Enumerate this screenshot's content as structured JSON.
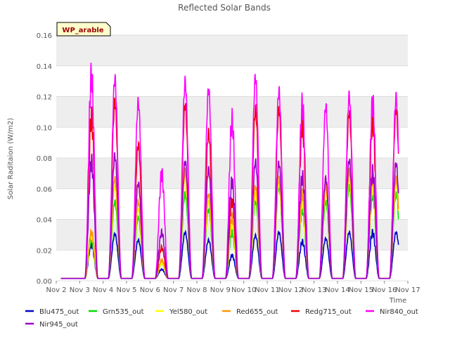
{
  "chart_data": {
    "type": "line",
    "title": "Reflected Solar Bands",
    "xlabel": "Time",
    "ylabel": "Solar Raditaion (W/m2)",
    "badge": "WP_arable",
    "ylim": [
      0,
      0.16
    ],
    "yticks": [
      "0.00",
      "0.02",
      "0.04",
      "0.06",
      "0.08",
      "0.10",
      "0.12",
      "0.14",
      "0.16"
    ],
    "xlim": [
      "Nov 2",
      "Nov 17"
    ],
    "xticks": [
      "Nov 2",
      "Nov 3",
      "Nov 4",
      "Nov 5",
      "Nov 6",
      "Nov 7",
      "Nov 8",
      "Nov 9",
      "Nov 10",
      "Nov 11",
      "Nov 12",
      "Nov 13",
      "Nov 14",
      "Nov 15",
      "Nov 16",
      "Nov 17"
    ],
    "grid": true,
    "legend_position": "bottom",
    "day_centers": [
      "Nov 3",
      "Nov 4",
      "Nov 5",
      "Nov 6",
      "Nov 7",
      "Nov 8",
      "Nov 9",
      "Nov 10",
      "Nov 11",
      "Nov 12",
      "Nov 13",
      "Nov 14",
      "Nov 15",
      "Nov 16"
    ],
    "series": [
      {
        "name": "Blu475_out",
        "color": "#0000cc",
        "daily_peaks": [
          0.022,
          0.029,
          0.025,
          0.006,
          0.03,
          0.025,
          0.015,
          0.028,
          0.03,
          0.024,
          0.026,
          0.03,
          0.03,
          0.03
        ]
      },
      {
        "name": "Grn535_out",
        "color": "#00dd00",
        "daily_peaks": [
          0.025,
          0.05,
          0.04,
          0.01,
          0.055,
          0.045,
          0.03,
          0.05,
          0.06,
          0.045,
          0.05,
          0.06,
          0.055,
          0.055
        ]
      },
      {
        "name": "Yel580_out",
        "color": "#ffff00",
        "daily_peaks": [
          0.028,
          0.06,
          0.045,
          0.01,
          0.065,
          0.05,
          0.035,
          0.055,
          0.062,
          0.05,
          0.055,
          0.065,
          0.06,
          0.06
        ]
      },
      {
        "name": "Red655_out",
        "color": "#ff9900",
        "daily_peaks": [
          0.03,
          0.065,
          0.05,
          0.012,
          0.07,
          0.055,
          0.04,
          0.06,
          0.065,
          0.055,
          0.06,
          0.07,
          0.065,
          0.065
        ]
      },
      {
        "name": "Redg715_out",
        "color": "#ee0000",
        "daily_peaks": [
          0.105,
          0.115,
          0.087,
          0.02,
          0.113,
          0.095,
          0.05,
          0.11,
          0.11,
          0.1,
          0.065,
          0.108,
          0.103,
          0.11
        ]
      },
      {
        "name": "Nir840_out",
        "color": "#ff00ff",
        "daily_peaks": [
          0.132,
          0.13,
          0.115,
          0.068,
          0.128,
          0.123,
          0.103,
          0.131,
          0.122,
          0.113,
          0.112,
          0.119,
          0.114,
          0.118
        ]
      },
      {
        "name": "Nir945_out",
        "color": "#9900cc",
        "daily_peaks": [
          0.076,
          0.08,
          0.062,
          0.03,
          0.076,
          0.071,
          0.063,
          0.076,
          0.075,
          0.066,
          0.065,
          0.077,
          0.069,
          0.075
        ]
      }
    ]
  }
}
